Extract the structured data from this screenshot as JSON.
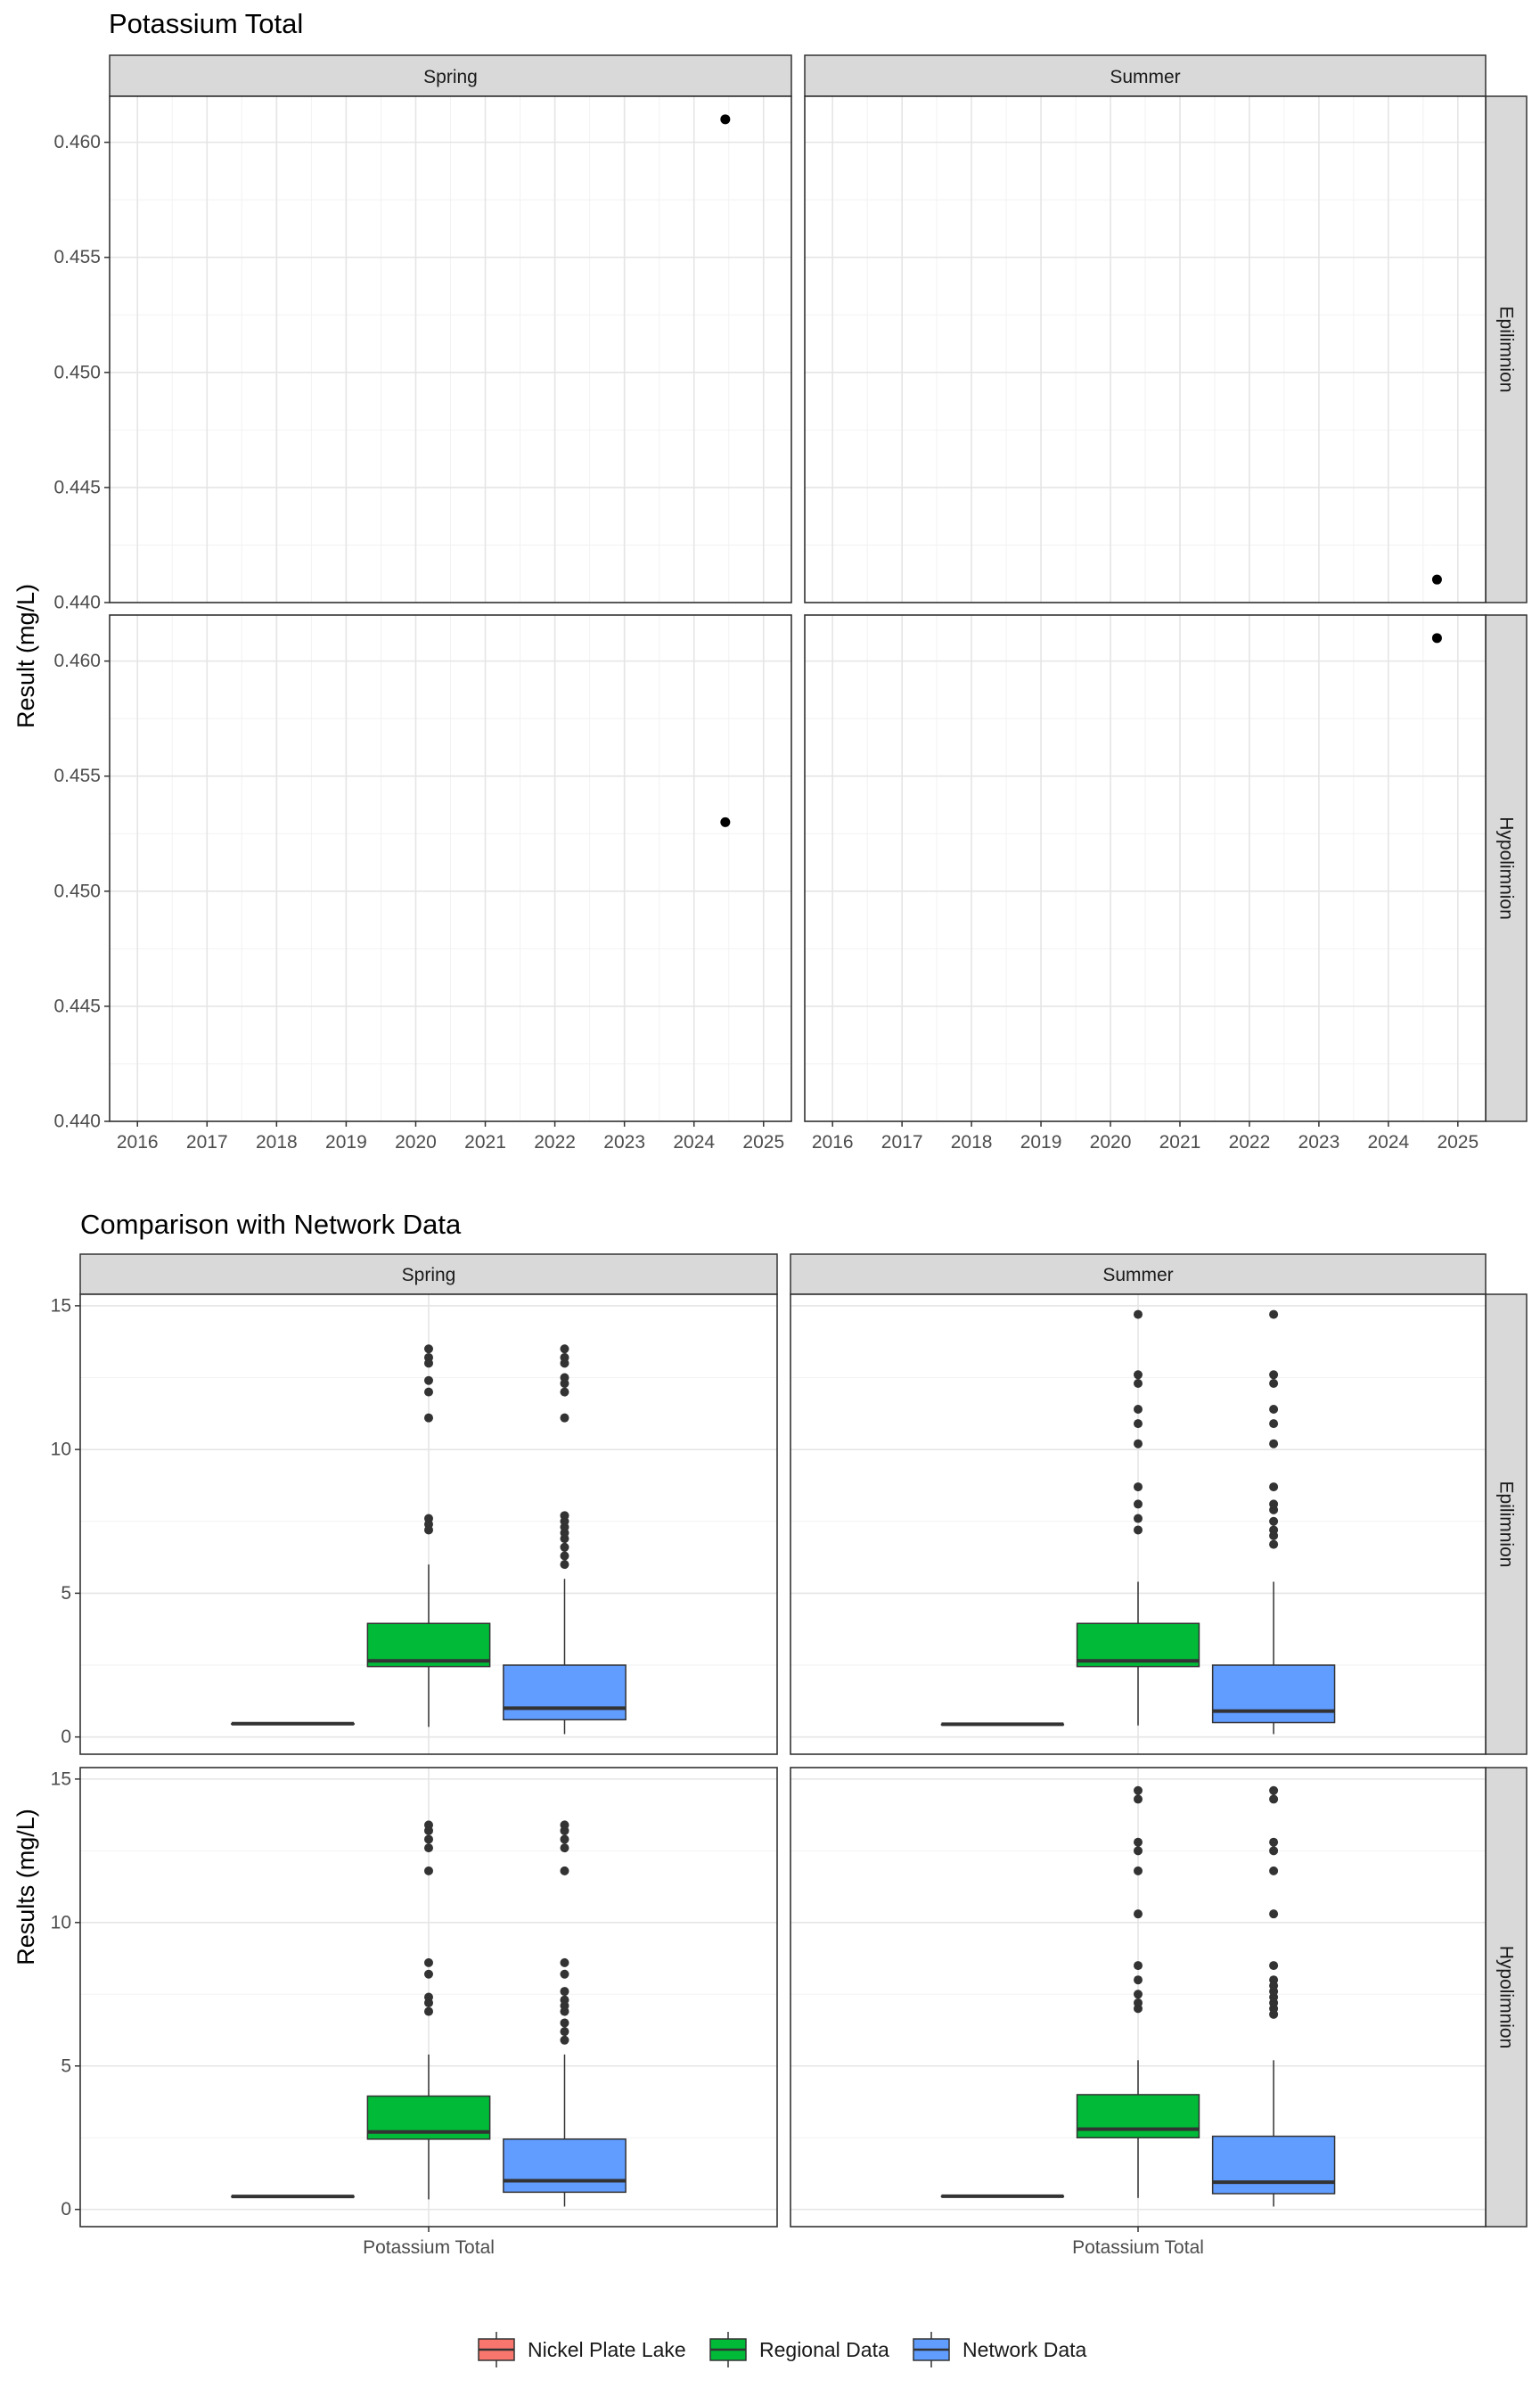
{
  "chart_data": [
    {
      "type": "scatter",
      "title": "Potassium Total",
      "ylabel": "Result (mg/L)",
      "xlabel": "",
      "grid": true,
      "x_ticks": [
        "2016",
        "2017",
        "2018",
        "2019",
        "2020",
        "2021",
        "2022",
        "2023",
        "2024",
        "2025"
      ],
      "xlim": [
        2015.6,
        2025.4
      ],
      "ylim": [
        0.44,
        0.462
      ],
      "y_ticks": [
        "0.440",
        "0.445",
        "0.450",
        "0.455",
        "0.460"
      ],
      "col_facets": [
        "Spring",
        "Summer"
      ],
      "row_facets": [
        "Epilimnion",
        "Hypolimnion"
      ],
      "panels": [
        {
          "season": "Spring",
          "layer": "Epilimnion",
          "points": [
            {
              "x": 2024.45,
              "y": 0.461
            }
          ]
        },
        {
          "season": "Summer",
          "layer": "Epilimnion",
          "points": [
            {
              "x": 2024.7,
              "y": 0.441
            }
          ]
        },
        {
          "season": "Spring",
          "layer": "Hypolimnion",
          "points": [
            {
              "x": 2024.45,
              "y": 0.453
            }
          ]
        },
        {
          "season": "Summer",
          "layer": "Hypolimnion",
          "points": [
            {
              "x": 2024.7,
              "y": 0.461
            }
          ]
        }
      ]
    },
    {
      "type": "box",
      "title": "Comparison with Network Data",
      "ylabel": "Results (mg/L)",
      "x_category": "Potassium Total",
      "ylim": [
        -0.6,
        15.4
      ],
      "y_ticks": [
        "0",
        "5",
        "10",
        "15"
      ],
      "grid": true,
      "col_facets": [
        "Spring",
        "Summer"
      ],
      "row_facets": [
        "Epilimnion",
        "Hypolimnion"
      ],
      "legend_position": "bottom",
      "legend": [
        {
          "name": "Nickel Plate Lake",
          "color": "#F8766D"
        },
        {
          "name": "Regional Data",
          "color": "#00BA38"
        },
        {
          "name": "Network Data",
          "color": "#619CFF"
        }
      ],
      "panels": [
        {
          "season": "Spring",
          "layer": "Epilimnion",
          "boxes": [
            {
              "series": "Nickel Plate Lake",
              "min": 0.461,
              "q1": 0.461,
              "median": 0.461,
              "q3": 0.461,
              "max": 0.461,
              "outliers": []
            },
            {
              "series": "Regional Data",
              "min": 0.35,
              "q1": 2.45,
              "median": 2.65,
              "q3": 3.95,
              "max": 6.0,
              "outliers": [
                7.2,
                7.4,
                7.6,
                11.1,
                12.0,
                12.4,
                13.0,
                13.2,
                13.5
              ]
            },
            {
              "series": "Network Data",
              "min": 0.1,
              "q1": 0.6,
              "median": 1.0,
              "q3": 2.5,
              "max": 5.5,
              "outliers": [
                6.0,
                6.3,
                6.6,
                6.9,
                7.1,
                7.3,
                7.5,
                7.7,
                11.1,
                12.0,
                12.3,
                12.5,
                13.0,
                13.2,
                13.5
              ]
            }
          ]
        },
        {
          "season": "Summer",
          "layer": "Epilimnion",
          "boxes": [
            {
              "series": "Nickel Plate Lake",
              "min": 0.441,
              "q1": 0.441,
              "median": 0.441,
              "q3": 0.441,
              "max": 0.441,
              "outliers": []
            },
            {
              "series": "Regional Data",
              "min": 0.4,
              "q1": 2.45,
              "median": 2.65,
              "q3": 3.95,
              "max": 5.4,
              "outliers": [
                7.2,
                7.6,
                8.1,
                8.7,
                10.2,
                10.9,
                11.4,
                12.3,
                12.6,
                14.7
              ]
            },
            {
              "series": "Network Data",
              "min": 0.1,
              "q1": 0.5,
              "median": 0.9,
              "q3": 2.5,
              "max": 5.4,
              "outliers": [
                6.7,
                7.0,
                7.2,
                7.5,
                7.9,
                8.1,
                8.7,
                10.2,
                10.9,
                11.4,
                12.3,
                12.6,
                14.7
              ]
            }
          ]
        },
        {
          "season": "Spring",
          "layer": "Hypolimnion",
          "boxes": [
            {
              "series": "Nickel Plate Lake",
              "min": 0.453,
              "q1": 0.453,
              "median": 0.453,
              "q3": 0.453,
              "max": 0.453,
              "outliers": []
            },
            {
              "series": "Regional Data",
              "min": 0.35,
              "q1": 2.45,
              "median": 2.7,
              "q3": 3.95,
              "max": 5.4,
              "outliers": [
                6.9,
                7.2,
                7.4,
                8.2,
                8.6,
                11.8,
                12.6,
                12.9,
                13.2,
                13.4
              ]
            },
            {
              "series": "Network Data",
              "min": 0.1,
              "q1": 0.6,
              "median": 1.0,
              "q3": 2.45,
              "max": 5.4,
              "outliers": [
                5.9,
                6.2,
                6.5,
                6.9,
                7.1,
                7.3,
                7.6,
                8.2,
                8.6,
                11.8,
                12.6,
                12.9,
                13.2,
                13.4
              ]
            }
          ]
        },
        {
          "season": "Summer",
          "layer": "Hypolimnion",
          "boxes": [
            {
              "series": "Nickel Plate Lake",
              "min": 0.461,
              "q1": 0.461,
              "median": 0.461,
              "q3": 0.461,
              "max": 0.461,
              "outliers": []
            },
            {
              "series": "Regional Data",
              "min": 0.4,
              "q1": 2.5,
              "median": 2.8,
              "q3": 4.0,
              "max": 5.2,
              "outliers": [
                7.0,
                7.2,
                7.5,
                8.0,
                8.5,
                10.3,
                11.8,
                12.5,
                12.8,
                14.3,
                14.6
              ]
            },
            {
              "series": "Network Data",
              "min": 0.1,
              "q1": 0.55,
              "median": 0.95,
              "q3": 2.55,
              "max": 5.2,
              "outliers": [
                6.8,
                7.0,
                7.2,
                7.4,
                7.6,
                7.8,
                8.0,
                8.5,
                10.3,
                11.8,
                12.5,
                12.8,
                14.3,
                14.6
              ]
            }
          ]
        }
      ]
    }
  ]
}
